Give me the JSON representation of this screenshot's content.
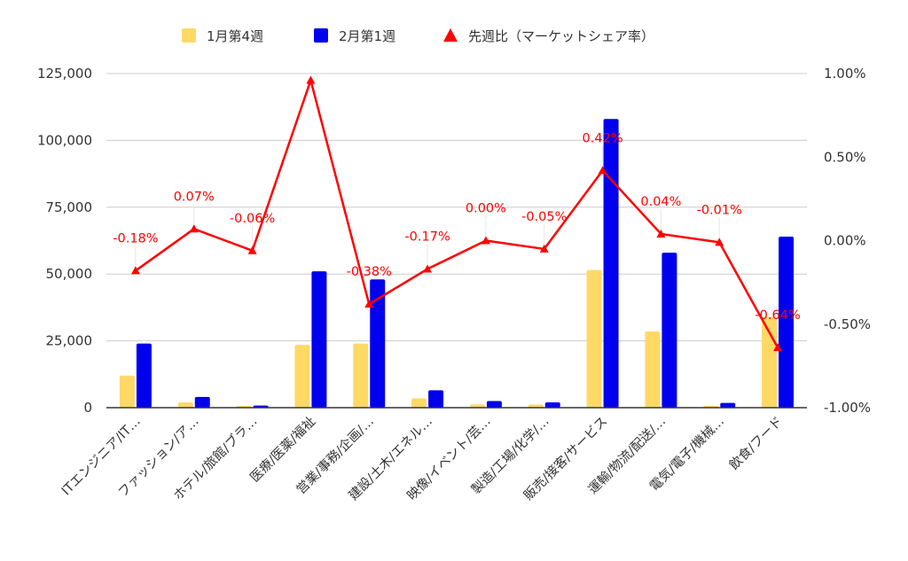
{
  "chart_data": {
    "type": "bar",
    "categories": [
      "ITエンジニア/IT…",
      "ファッション/ア…",
      "ホテル/旅館/ブラ…",
      "医療/医薬/福祉",
      "営業/事務/企画/…",
      "建設/土木/エネル…",
      "映像/イベント/芸…",
      "製造/工場/化学/…",
      "販売/接客/サービス",
      "運輸/物流/配送/…",
      "電気/電子/機械…",
      "飲食/フード"
    ],
    "series": [
      {
        "name": "1月第4週",
        "type": "bar",
        "axis": "left",
        "color": "#ffd966",
        "values": [
          12000,
          2000,
          700,
          23500,
          24000,
          3500,
          1200,
          1200,
          51500,
          28500,
          700,
          34000
        ]
      },
      {
        "name": "2月第1週",
        "type": "bar",
        "axis": "left",
        "color": "#0000ee",
        "values": [
          24000,
          4000,
          800,
          51000,
          48000,
          6500,
          2500,
          2000,
          108000,
          58000,
          1800,
          64000
        ]
      },
      {
        "name": "先週比（マーケットシェア率）",
        "type": "line",
        "axis": "right",
        "color": "#ff0000",
        "values": [
          -0.18,
          0.07,
          -0.06,
          0.96,
          -0.38,
          -0.17,
          0.0,
          -0.05,
          0.42,
          0.04,
          -0.01,
          -0.64
        ],
        "labels": [
          "-0.18%",
          "0.07%",
          "-0.06%",
          "",
          "-0.38%",
          "-0.17%",
          "0.00%",
          "-0.05%",
          "0.42%",
          "0.04%",
          "-0.01%",
          "-0.64%"
        ]
      }
    ],
    "y_left": {
      "range": [
        0,
        125000
      ],
      "ticks": [
        "0",
        "25,000",
        "50,000",
        "75,000",
        "100,000",
        "125,000"
      ]
    },
    "y_right": {
      "range": [
        -1.0,
        1.0
      ],
      "unit": "%",
      "ticks": [
        "-1.00%",
        "-0.50%",
        "0.00%",
        "0.50%",
        "1.00%"
      ]
    },
    "grid": true,
    "legend": "top-center"
  }
}
